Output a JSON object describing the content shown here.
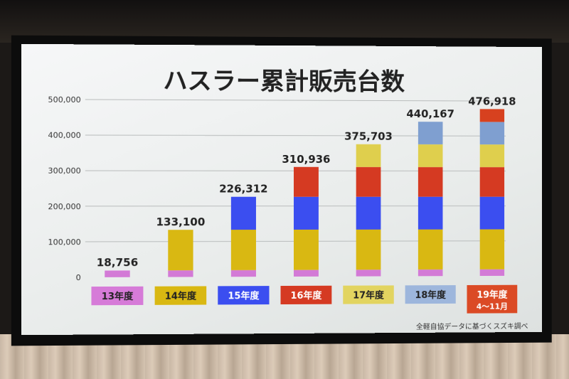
{
  "chart_data": {
    "type": "bar",
    "stacked": true,
    "title": "ハスラー累計販売台数",
    "categories": [
      "13年度",
      "14年度",
      "15年度",
      "16年度",
      "17年度",
      "18年度",
      "19年度"
    ],
    "category_sublabels": [
      "",
      "",
      "",
      "",
      "",
      "",
      "4〜11月"
    ],
    "totals": [
      18756,
      133100,
      226312,
      310936,
      375703,
      440167,
      476918
    ],
    "total_labels": [
      "18,756",
      "133,100",
      "226,312",
      "310,936",
      "375,703",
      "440,167",
      "476,918"
    ],
    "series": [
      {
        "color": "#d37ad6",
        "values": [
          18756,
          18756,
          18756,
          18756,
          18756,
          18756,
          18756
        ]
      },
      {
        "color": "#d9b812",
        "values": [
          0,
          114344,
          114344,
          114344,
          114344,
          114344,
          114344
        ]
      },
      {
        "color": "#3b4ef0",
        "values": [
          0,
          0,
          93212,
          93212,
          93212,
          93212,
          93212
        ]
      },
      {
        "color": "#d53a22",
        "values": [
          0,
          0,
          0,
          84624,
          84624,
          84624,
          84624
        ]
      },
      {
        "color": "#dfcf4d",
        "values": [
          0,
          0,
          0,
          0,
          64767,
          64767,
          64767
        ]
      },
      {
        "color": "#7f9fd0",
        "values": [
          0,
          0,
          0,
          0,
          0,
          64464,
          64464
        ]
      },
      {
        "color": "#d7411f",
        "values": [
          0,
          0,
          0,
          0,
          0,
          0,
          36751
        ]
      }
    ],
    "label_colors": [
      "#d67bd8",
      "#d9b812",
      "#3b4ef0",
      "#d53a22",
      "#e2d460",
      "#9db6dc",
      "#db4a25"
    ],
    "label_text_colors": [
      "#222222",
      "#222222",
      "#ffffff",
      "#ffffff",
      "#222222",
      "#222222",
      "#ffffff"
    ],
    "y_ticks": [
      "0",
      "100,000",
      "200,000",
      "300,000",
      "400,000",
      "500,000"
    ],
    "ylim": [
      0,
      500000
    ],
    "grid": true,
    "footnote": "全軽自協データに基づくスズキ調べ"
  }
}
